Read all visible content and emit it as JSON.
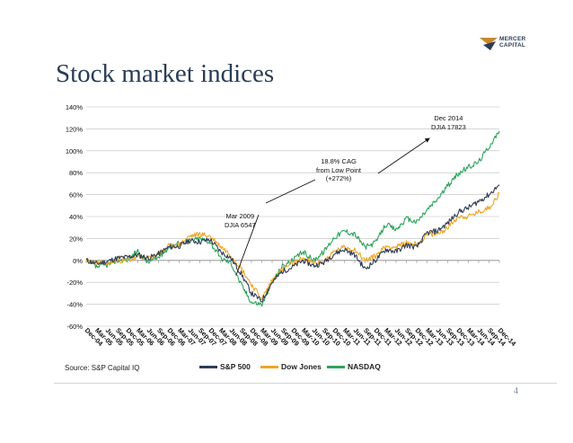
{
  "slide": {
    "title": "Stock market indices",
    "logo_line1": "MERCER",
    "logo_line2": "CAPITAL",
    "source": "Source: S&P Capital IQ",
    "page_number": "4"
  },
  "colors": {
    "sp500": "#2f3d56",
    "dow": "#f0a526",
    "nasdaq": "#2ea35c",
    "grid": "#bdbdbd",
    "title": "#2b3d56"
  },
  "chart_data": {
    "type": "line",
    "title": "",
    "xlabel": "",
    "ylabel": "",
    "ylim": [
      -60,
      140
    ],
    "yticks": [
      -60,
      -40,
      -20,
      0,
      20,
      40,
      60,
      80,
      100,
      120,
      140
    ],
    "ytick_labels": [
      "-60%",
      "-40%",
      "-20%",
      "0%",
      "20%",
      "40%",
      "60%",
      "80%",
      "100%",
      "120%",
      "140%"
    ],
    "grid": true,
    "legend_position": "bottom",
    "x_labels": [
      "Dec-04",
      "Mar-05",
      "Jun-05",
      "Sep-05",
      "Dec-05",
      "Mar-06",
      "Jun-06",
      "Sep-06",
      "Dec-06",
      "Mar-07",
      "Jun-07",
      "Sep-07",
      "Dec-07",
      "Mar-08",
      "Jun-08",
      "Sep-08",
      "Dec-08",
      "Mar-09",
      "Jun-09",
      "Sep-09",
      "Dec-09",
      "Mar-10",
      "Jun-10",
      "Sep-10",
      "Dec-10",
      "Mar-11",
      "Jun-11",
      "Sep-11",
      "Dec-11",
      "Mar-12",
      "Jun-12",
      "Sep-12",
      "Dec-12",
      "Mar-13",
      "Jun-13",
      "Sep-13",
      "Dec-13",
      "Mar-14",
      "Jun-14",
      "Sep-14",
      "Dec-14"
    ],
    "series": [
      {
        "name": "S&P 500",
        "color": "#2f3d56",
        "values": [
          0,
          -3,
          -1,
          2,
          3,
          5,
          2,
          6,
          12,
          13,
          18,
          17,
          19,
          8,
          2,
          -12,
          -30,
          -37,
          -20,
          -10,
          -6,
          0,
          -5,
          -2,
          6,
          10,
          5,
          -8,
          0,
          10,
          8,
          14,
          12,
          25,
          27,
          34,
          44,
          48,
          54,
          60,
          69
        ]
      },
      {
        "name": "Dow Jones",
        "color": "#f0a526",
        "values": [
          0,
          -2,
          -3,
          0,
          0,
          3,
          2,
          6,
          13,
          14,
          22,
          24,
          22,
          13,
          5,
          -7,
          -22,
          -35,
          -18,
          -8,
          -3,
          2,
          -3,
          -1,
          8,
          12,
          10,
          0,
          4,
          13,
          12,
          16,
          15,
          23,
          24,
          30,
          40,
          40,
          44,
          48,
          61
        ]
      },
      {
        "name": "NASDAQ",
        "color": "#2ea35c",
        "values": [
          0,
          -6,
          -4,
          0,
          1,
          8,
          -2,
          3,
          12,
          16,
          18,
          20,
          17,
          2,
          -2,
          -22,
          -38,
          -40,
          -20,
          -5,
          0,
          8,
          0,
          8,
          21,
          27,
          24,
          12,
          16,
          33,
          28,
          38,
          35,
          46,
          56,
          68,
          79,
          85,
          90,
          104,
          118
        ]
      }
    ],
    "annotations": [
      {
        "text": [
          "Dec 2014",
          "DJIA 17823"
        ]
      },
      {
        "text": [
          "18.8% CAG",
          "from Low Point",
          "(+272%)"
        ]
      },
      {
        "text": [
          "Mar 2009",
          "DJIA 6547"
        ]
      }
    ]
  }
}
